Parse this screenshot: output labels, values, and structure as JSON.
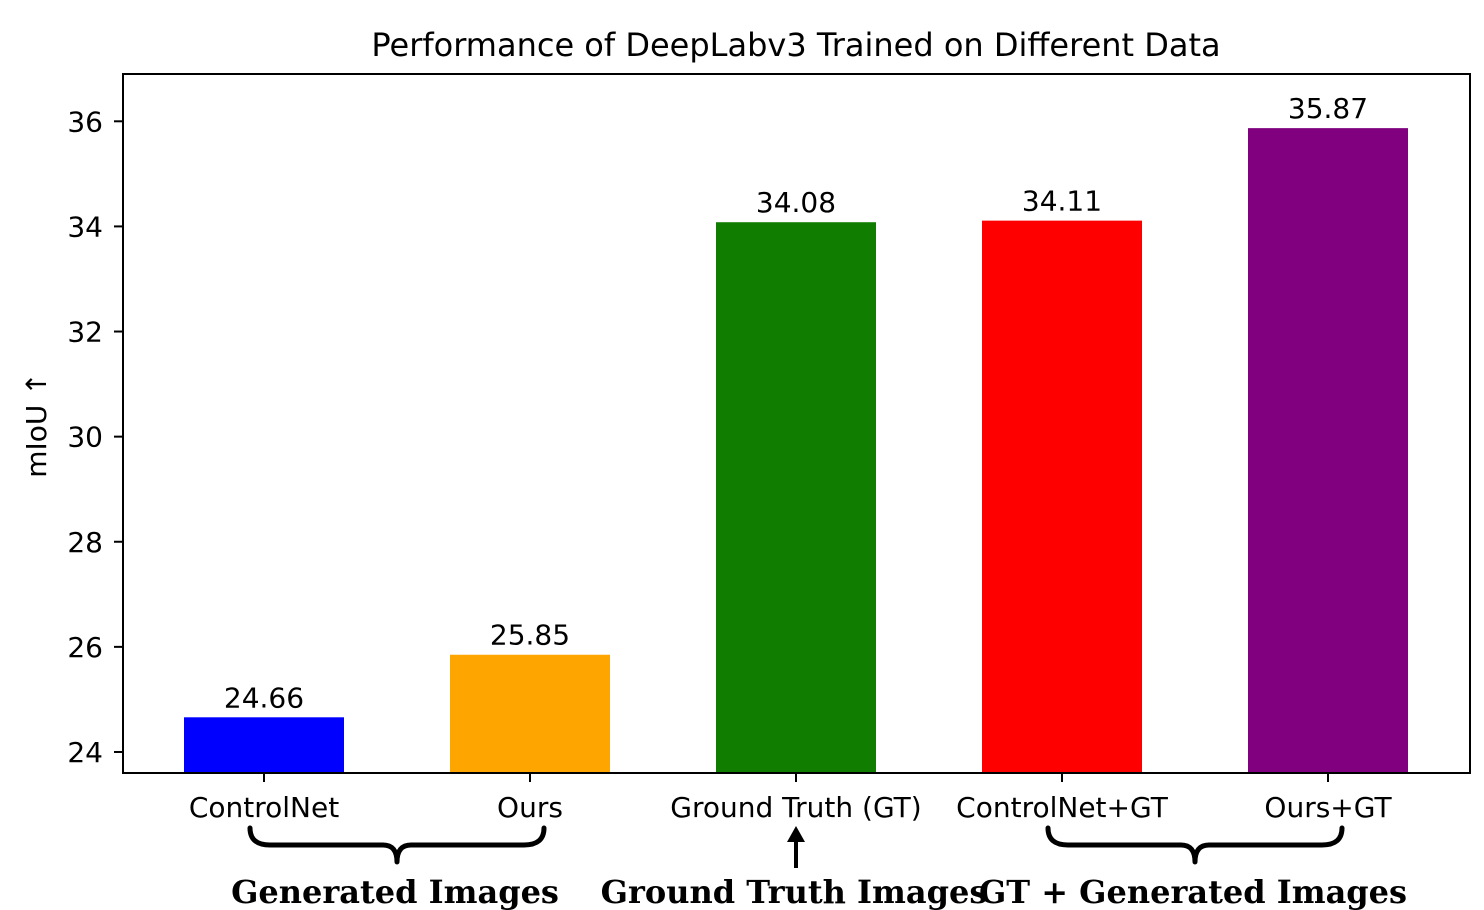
{
  "chart_data": {
    "type": "bar",
    "title": "Performance of DeepLabv3 Trained on Different Data",
    "ylabel": "mIoU ↑",
    "xlabel": "",
    "ylim": [
      23.6,
      36.9
    ],
    "yticks": [
      24,
      26,
      28,
      30,
      32,
      34,
      36
    ],
    "categories": [
      "ControlNet",
      "Ours",
      "Ground Truth (GT)",
      "ControlNet+GT",
      "Ours+GT"
    ],
    "values": [
      24.66,
      25.85,
      34.08,
      34.11,
      35.87
    ],
    "value_labels": [
      "24.66",
      "25.85",
      "34.08",
      "34.11",
      "35.87"
    ],
    "colors": [
      "#0000ff",
      "#ffa500",
      "#117d00",
      "#ff0000",
      "#800080"
    ],
    "grid": false,
    "legend": "none",
    "groups": [
      {
        "label": "Generated Images",
        "from": 0,
        "to": 1,
        "marker": "brace"
      },
      {
        "label": "Ground Truth Images",
        "from": 2,
        "to": 2,
        "marker": "arrow"
      },
      {
        "label": "GT + Generated Images",
        "from": 3,
        "to": 4,
        "marker": "brace"
      }
    ]
  }
}
